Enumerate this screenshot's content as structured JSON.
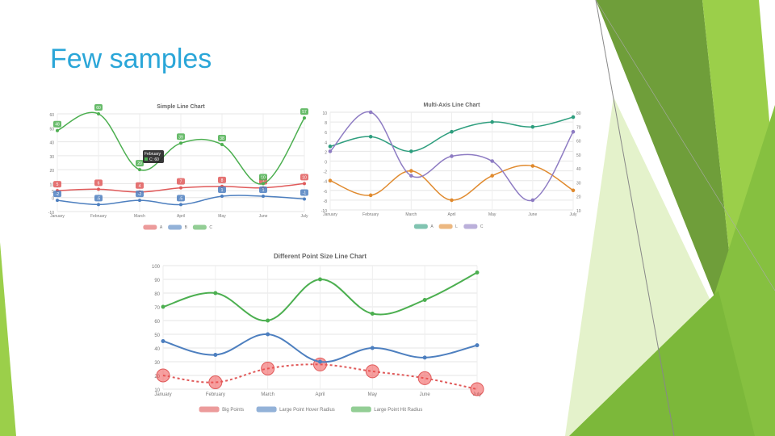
{
  "slide": {
    "title": "Few samples"
  },
  "colors": {
    "title": "#2aa6d8",
    "deco_dark": "#6f9e3a",
    "deco_light": "#9bcf4a",
    "deco_pale": "#d8ecb5"
  },
  "chart_data": [
    {
      "type": "line",
      "title": "Simple Line Chart",
      "categories": [
        "January",
        "February",
        "March",
        "April",
        "May",
        "June",
        "July"
      ],
      "ylim": [
        -10,
        60
      ],
      "yticks": [
        -10,
        0,
        5,
        10,
        20,
        30,
        40,
        50,
        60
      ],
      "tooltip": {
        "title": "February",
        "body": "C: 60"
      },
      "series": [
        {
          "name": "A",
          "color": "#e05a5a",
          "values": [
            5,
            6,
            4,
            7,
            8,
            7,
            10
          ]
        },
        {
          "name": "B",
          "color": "#4d7fbf",
          "values": [
            -2,
            -5,
            -2,
            -5,
            1,
            1,
            -1
          ]
        },
        {
          "name": "C",
          "color": "#4caf50",
          "values": [
            48,
            60,
            20,
            39,
            38,
            10,
            57
          ]
        }
      ]
    },
    {
      "type": "line",
      "title": "Multi-Axis Line Chart",
      "categories": [
        "January",
        "February",
        "March",
        "April",
        "May",
        "June",
        "July"
      ],
      "ylim": [
        -10,
        10
      ],
      "yticks_left": [
        -10,
        -8,
        -6,
        -4,
        -2,
        0,
        2,
        4,
        6,
        8,
        10
      ],
      "ylim_right": [
        10,
        80
      ],
      "yticks_right": [
        10,
        20,
        30,
        40,
        50,
        60,
        70,
        80
      ],
      "series": [
        {
          "name": "A",
          "color": "#2e9e7e",
          "values": [
            3,
            5,
            2,
            6,
            8,
            7,
            9
          ]
        },
        {
          "name": "L",
          "color": "#e08a2e",
          "values": [
            -4,
            -7,
            -2,
            -8,
            -3,
            -1,
            -6
          ]
        },
        {
          "name": "C",
          "color": "#8e7cc3",
          "values": [
            2,
            10,
            -3,
            1,
            0,
            -8,
            6
          ]
        }
      ]
    },
    {
      "type": "line",
      "title": "Different Point Size Line Chart",
      "categories": [
        "January",
        "February",
        "March",
        "April",
        "May",
        "June",
        "July"
      ],
      "ylim": [
        10,
        100
      ],
      "yticks": [
        10,
        20,
        30,
        40,
        50,
        60,
        70,
        80,
        90,
        100
      ],
      "series": [
        {
          "name": "Big Points",
          "color": "#e05a5a",
          "dashed": true,
          "values": [
            20,
            15,
            25,
            28,
            23,
            18,
            10
          ]
        },
        {
          "name": "Large Point Hover Radius",
          "color": "#4d7fbf",
          "values": [
            45,
            35,
            50,
            30,
            40,
            33,
            42
          ]
        },
        {
          "name": "Large Point Hit Radius",
          "color": "#4caf50",
          "values": [
            70,
            80,
            60,
            90,
            65,
            75,
            95
          ]
        }
      ]
    }
  ]
}
